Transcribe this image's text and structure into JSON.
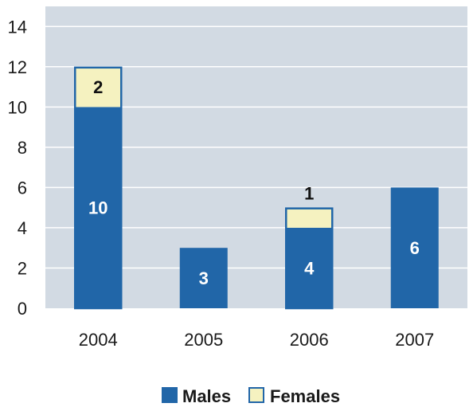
{
  "chart_data": {
    "type": "bar",
    "stacked": true,
    "categories": [
      "2004",
      "2005",
      "2006",
      "2007"
    ],
    "series": [
      {
        "name": "Males",
        "values": [
          10,
          3,
          4,
          6
        ],
        "color": "#2166a8"
      },
      {
        "name": "Females",
        "values": [
          2,
          0,
          1,
          0
        ],
        "color": "#f5f2c0"
      }
    ],
    "data_labels": {
      "Males": [
        "10",
        "3",
        "4",
        "6"
      ],
      "Females": [
        "2",
        "",
        "1",
        ""
      ]
    },
    "ylim": [
      0,
      15
    ],
    "yticks": [
      0,
      2,
      4,
      6,
      8,
      10,
      12,
      14
    ],
    "grid": true,
    "plot_background": "#d2dae3",
    "legend_position": "bottom-center"
  }
}
